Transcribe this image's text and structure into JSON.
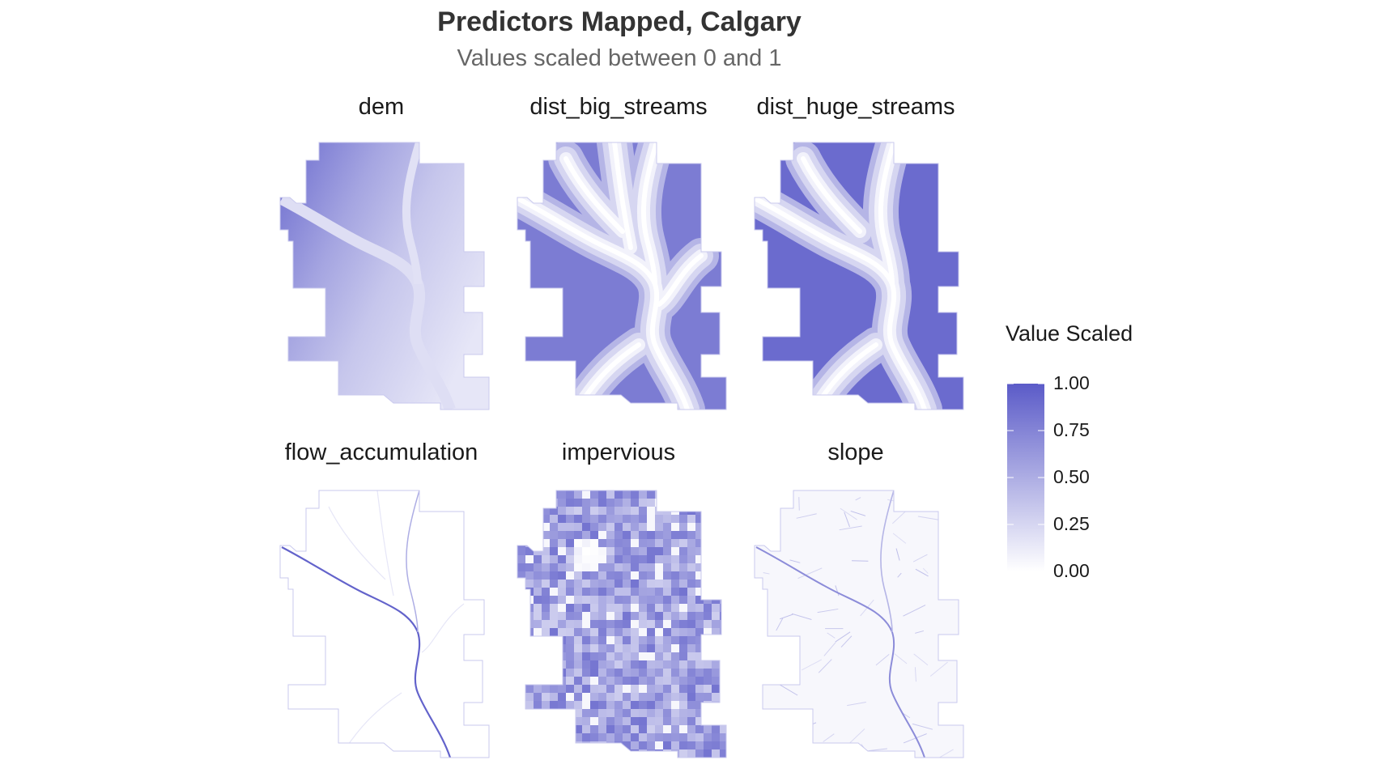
{
  "header": {
    "title": "Predictors Mapped, Calgary",
    "subtitle": "Values scaled between 0 and 1"
  },
  "chart_data": {
    "type": "heatmap",
    "title": "Predictors Mapped, Calgary",
    "subtitle": "Values scaled between 0 and 1",
    "xlabel": "",
    "ylabel": "",
    "facets": [
      {
        "name": "dem",
        "pattern": "elevation gradient, high in the west (~0.9) falling to ~0.2 in the east",
        "min": 0.1,
        "max": 0.9
      },
      {
        "name": "dist_big_streams",
        "pattern": "distance from streams: 0 along stream channels rising to ~0.9 between them",
        "min": 0.0,
        "max": 0.9
      },
      {
        "name": "dist_huge_streams",
        "pattern": "distance from large rivers: 0 along rivers rising to ~1.0 in the northeast",
        "min": 0.0,
        "max": 1.0
      },
      {
        "name": "flow_accumulation",
        "pattern": "near 0 everywhere except river channels (~1.0)",
        "min": 0.0,
        "max": 1.0
      },
      {
        "name": "impervious",
        "pattern": "patchy urban surface, mostly 0.4-0.8, low in parks and edges",
        "min": 0.0,
        "max": 0.8
      },
      {
        "name": "slope",
        "pattern": "mostly near 0, higher along river valleys and escarpments",
        "min": 0.0,
        "max": 0.9
      }
    ],
    "legend": {
      "title": "Value Scaled",
      "placement": "right",
      "colors": {
        "low": "#ffffff",
        "high": "#5b5bc8"
      },
      "breaks": [
        1.0,
        0.75,
        0.5,
        0.25,
        0.0
      ],
      "labels": [
        "1.00",
        "0.75",
        "0.50",
        "0.25",
        "0.00"
      ],
      "limits": [
        0,
        1
      ]
    },
    "grid": false
  }
}
